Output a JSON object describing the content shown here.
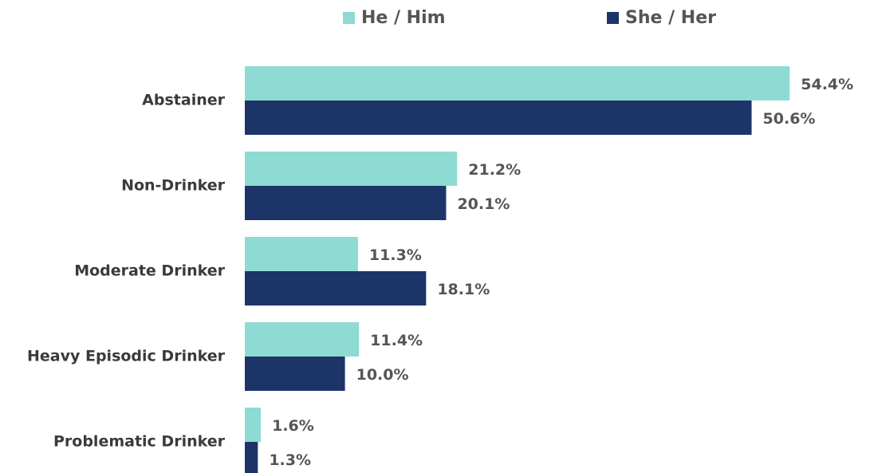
{
  "chart_data": {
    "type": "bar",
    "orientation": "horizontal",
    "legend": "top",
    "categories": [
      "Abstainer",
      "Non-Drinker",
      "Moderate Drinker",
      "Heavy Episodic Drinker",
      "Problematic Drinker"
    ],
    "series": [
      {
        "name": "He / Him",
        "color": "#8ddbd2",
        "values": [
          54.4,
          21.2,
          11.3,
          11.4,
          1.6
        ],
        "value_labels": [
          "54.4%",
          "21.2%",
          "11.3%",
          "11.4%",
          "1.6%"
        ]
      },
      {
        "name": "She / Her",
        "color": "#1c3468",
        "values": [
          50.6,
          20.1,
          18.1,
          10.0,
          1.3
        ],
        "value_labels": [
          "50.6%",
          "20.1%",
          "18.1%",
          "10.0%",
          "1.3%"
        ]
      }
    ]
  }
}
